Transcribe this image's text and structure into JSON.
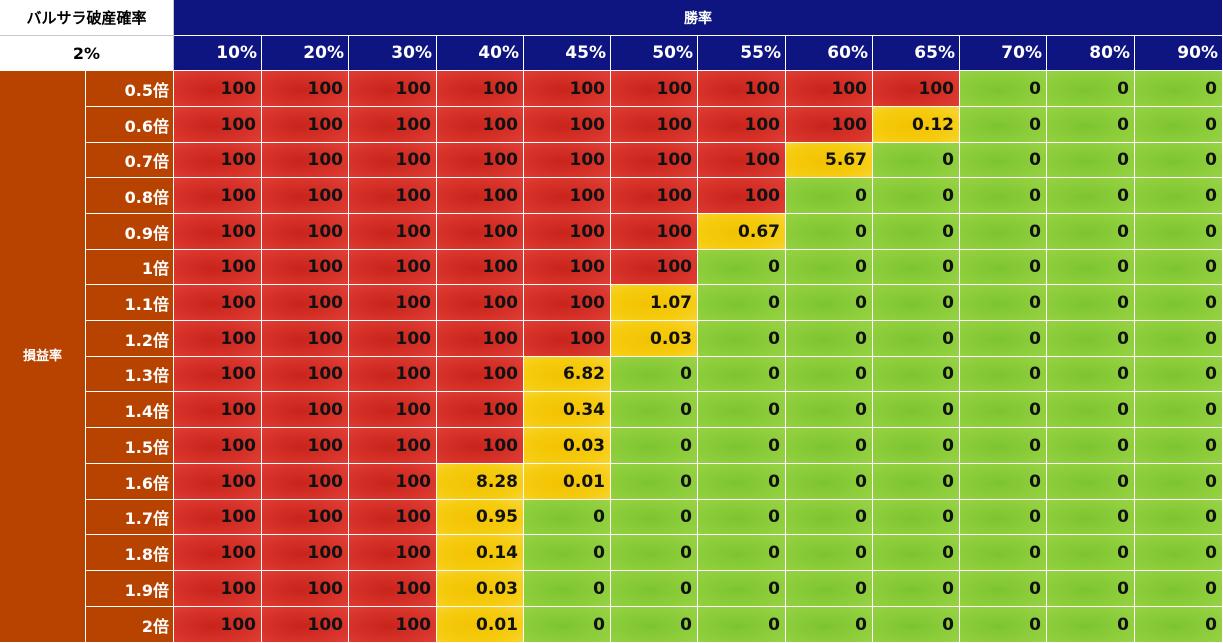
{
  "title": "バルサラ破産確率",
  "risk_percent": "2%",
  "win_rate_header": "勝率",
  "profit_loss_header": "損益率",
  "win_rates": [
    "10%",
    "20%",
    "30%",
    "40%",
    "45%",
    "50%",
    "55%",
    "60%",
    "65%",
    "70%",
    "80%",
    "90%"
  ],
  "ratios": [
    "0.5倍",
    "0.6倍",
    "0.7倍",
    "0.8倍",
    "0.9倍",
    "1倍",
    "1.1倍",
    "1.2倍",
    "1.3倍",
    "1.4倍",
    "1.5倍",
    "1.6倍",
    "1.7倍",
    "1.8倍",
    "1.9倍",
    "2倍"
  ],
  "values": [
    [
      "100",
      "100",
      "100",
      "100",
      "100",
      "100",
      "100",
      "100",
      "100",
      "0",
      "0",
      "0"
    ],
    [
      "100",
      "100",
      "100",
      "100",
      "100",
      "100",
      "100",
      "100",
      "0.12",
      "0",
      "0",
      "0"
    ],
    [
      "100",
      "100",
      "100",
      "100",
      "100",
      "100",
      "100",
      "5.67",
      "0",
      "0",
      "0",
      "0"
    ],
    [
      "100",
      "100",
      "100",
      "100",
      "100",
      "100",
      "100",
      "0",
      "0",
      "0",
      "0",
      "0"
    ],
    [
      "100",
      "100",
      "100",
      "100",
      "100",
      "100",
      "0.67",
      "0",
      "0",
      "0",
      "0",
      "0"
    ],
    [
      "100",
      "100",
      "100",
      "100",
      "100",
      "100",
      "0",
      "0",
      "0",
      "0",
      "0",
      "0"
    ],
    [
      "100",
      "100",
      "100",
      "100",
      "100",
      "1.07",
      "0",
      "0",
      "0",
      "0",
      "0",
      "0"
    ],
    [
      "100",
      "100",
      "100",
      "100",
      "100",
      "0.03",
      "0",
      "0",
      "0",
      "0",
      "0",
      "0"
    ],
    [
      "100",
      "100",
      "100",
      "100",
      "6.82",
      "0",
      "0",
      "0",
      "0",
      "0",
      "0",
      "0"
    ],
    [
      "100",
      "100",
      "100",
      "100",
      "0.34",
      "0",
      "0",
      "0",
      "0",
      "0",
      "0",
      "0"
    ],
    [
      "100",
      "100",
      "100",
      "100",
      "0.03",
      "0",
      "0",
      "0",
      "0",
      "0",
      "0",
      "0"
    ],
    [
      "100",
      "100",
      "100",
      "8.28",
      "0.01",
      "0",
      "0",
      "0",
      "0",
      "0",
      "0",
      "0"
    ],
    [
      "100",
      "100",
      "100",
      "0.95",
      "0",
      "0",
      "0",
      "0",
      "0",
      "0",
      "0",
      "0"
    ],
    [
      "100",
      "100",
      "100",
      "0.14",
      "0",
      "0",
      "0",
      "0",
      "0",
      "0",
      "0",
      "0"
    ],
    [
      "100",
      "100",
      "100",
      "0.03",
      "0",
      "0",
      "0",
      "0",
      "0",
      "0",
      "0",
      "0"
    ],
    [
      "100",
      "100",
      "100",
      "0.01",
      "0",
      "0",
      "0",
      "0",
      "0",
      "0",
      "0",
      "0"
    ]
  ],
  "colors": {
    "header_bg": "#0e1580",
    "side_bg": "#b84300",
    "ruin_certain": "#d6322a",
    "ruin_partial": "#f6cc10",
    "ruin_zero": "#8ccd3a"
  }
}
